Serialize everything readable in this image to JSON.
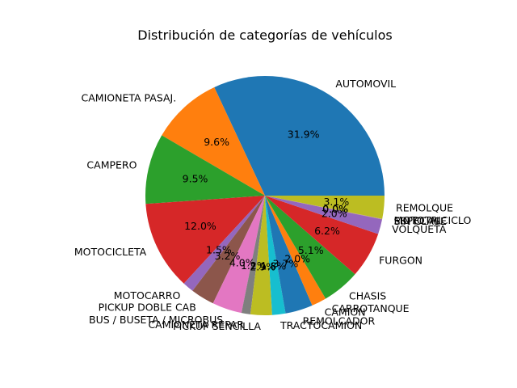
{
  "chart_data": {
    "type": "pie",
    "title": "Distribución de categorías de vehículos",
    "start_angle_deg": 0,
    "direction": "counterclockwise",
    "slices": [
      {
        "label": "AUTOMOVIL",
        "pct_label": "31.9%",
        "value": 31.9,
        "color": "#1f77b4"
      },
      {
        "label": "CAMIONETA PASAJ.",
        "pct_label": "9.6%",
        "value": 9.6,
        "color": "#ff7f0e"
      },
      {
        "label": "CAMPERO",
        "pct_label": "9.5%",
        "value": 9.5,
        "color": "#2ca02c"
      },
      {
        "label": "MOTOCICLETA",
        "pct_label": "12.0%",
        "value": 12.0,
        "color": "#d62728"
      },
      {
        "label": "MOTOCARRO",
        "pct_label": "1.5%",
        "value": 1.5,
        "color": "#9467bd"
      },
      {
        "label": "PICKUP DOBLE CAB",
        "pct_label": "3.2%",
        "value": 3.2,
        "color": "#8c564b"
      },
      {
        "label": "BUS / BUSETA / MICROBUS",
        "pct_label": "4.0%",
        "value": 4.0,
        "color": "#e377c2"
      },
      {
        "label": "CAMIONETA REPAR",
        "pct_label": "1.2%",
        "value": 1.2,
        "color": "#7f7f7f"
      },
      {
        "label": "PICKUP SENCILLA",
        "pct_label": "2.9%",
        "value": 2.9,
        "color": "#bcbd22"
      },
      {
        "label": "TRACTOCAMION",
        "pct_label": "1.8%",
        "value": 1.8,
        "color": "#17becf"
      },
      {
        "label": "REMOLCADOR",
        "pct_label": "3.7%",
        "value": 3.7,
        "color": "#1f77b4"
      },
      {
        "label": "CAMION",
        "pct_label": "2.0%",
        "value": 2.0,
        "color": "#ff7f0e"
      },
      {
        "label": "CARROTANQUE",
        "pct_label": "",
        "value": 0.0,
        "color": "#2ca02c"
      },
      {
        "label": "CHASIS",
        "pct_label": "5.1%",
        "value": 5.1,
        "color": "#2ca02c"
      },
      {
        "label": "FURGON",
        "pct_label": "6.2%",
        "value": 6.2,
        "color": "#d62728"
      },
      {
        "label": "VOLQUETA",
        "pct_label": "2.0%",
        "value": 2.0,
        "color": "#9467bd"
      },
      {
        "label": "SIN CLASE",
        "pct_label": "0.0%",
        "value": 0.03,
        "color": "#8c564b"
      },
      {
        "label": "ESPECIAL",
        "pct_label": "0.0%",
        "value": 0.03,
        "color": "#e377c2"
      },
      {
        "label": "MOTOTRICICLO",
        "pct_label": "0.0%",
        "value": 0.03,
        "color": "#7f7f7f"
      },
      {
        "label": "REMOLQUE",
        "pct_label": "3.1%",
        "value": 3.1,
        "color": "#bcbd22"
      }
    ]
  }
}
